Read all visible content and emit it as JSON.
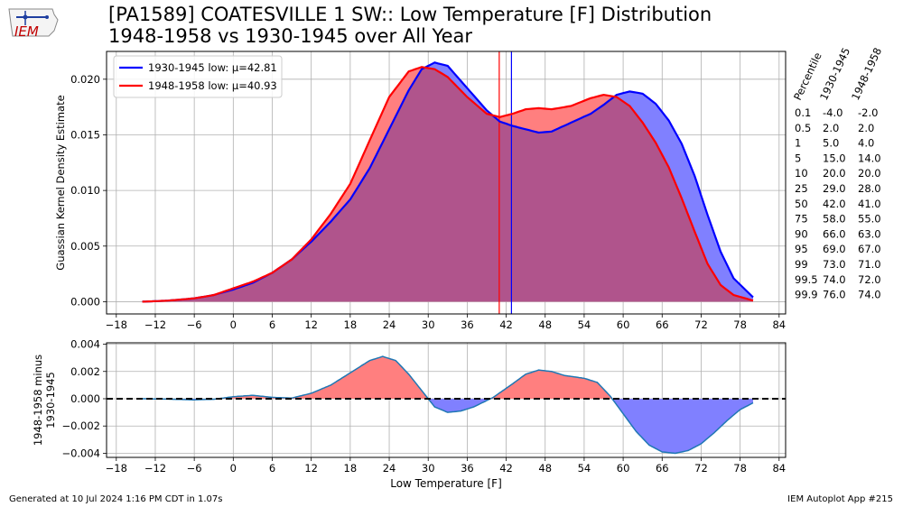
{
  "header": {
    "title_line1": "[PA1589] COATESVILLE 1 SW:: Low Temperature [F] Distribution",
    "title_line2": "1948-1958 vs 1930-1945 over All Year",
    "logo_text": "IEM"
  },
  "footer": {
    "generated": "Generated at 10 Jul 2024 1:16 PM CDT in 1.07s",
    "app": "IEM Autoplot App #215"
  },
  "colors": {
    "series_a": "#0000ff",
    "series_b": "#ff0000",
    "fill_a": "#8080ff",
    "fill_b": "#ff7f7f",
    "fill_overlap": "#b0548c",
    "diff_line": "#1f77b4",
    "grid": "#b0b0b0"
  },
  "chart_data": [
    {
      "type": "area",
      "ylabel": "Guassian Kernel Density Estimate",
      "xlim": [
        -19.5,
        85
      ],
      "ylim": [
        -0.0011,
        0.0225
      ],
      "xticks": [
        -18,
        -12,
        -6,
        0,
        6,
        12,
        18,
        24,
        30,
        36,
        42,
        48,
        54,
        60,
        66,
        72,
        78,
        84
      ],
      "yticks": [
        0.0,
        0.005,
        0.01,
        0.015,
        0.02
      ],
      "ytick_labels": [
        "0.000",
        "0.005",
        "0.010",
        "0.015",
        "0.020"
      ],
      "grid": true,
      "legend": "upper left",
      "x": [
        -14,
        -10,
        -6,
        -3,
        0,
        3,
        6,
        9,
        12,
        15,
        18,
        21,
        24,
        27,
        29,
        31,
        33,
        36,
        39,
        41,
        43,
        45,
        47,
        49,
        52,
        55,
        57,
        59,
        61,
        63,
        65,
        67,
        69,
        71,
        73,
        75,
        77,
        80
      ],
      "series": [
        {
          "name": "1930-1945 low: μ=42.81",
          "mean": 42.81,
          "values": [
            0.0,
            0.0001,
            0.0003,
            0.0006,
            0.0011,
            0.0017,
            0.0026,
            0.0038,
            0.0054,
            0.0072,
            0.0092,
            0.012,
            0.0155,
            0.019,
            0.0209,
            0.0215,
            0.0212,
            0.0192,
            0.0172,
            0.0162,
            0.0158,
            0.0155,
            0.0152,
            0.0153,
            0.0161,
            0.0169,
            0.0177,
            0.0186,
            0.0189,
            0.0187,
            0.0178,
            0.0163,
            0.0142,
            0.0113,
            0.0078,
            0.0045,
            0.0021,
            0.0004
          ]
        },
        {
          "name": "1948-1958 low: μ=40.93",
          "mean": 40.93,
          "values": [
            0.0,
            0.0001,
            0.0003,
            0.0006,
            0.0012,
            0.0018,
            0.0026,
            0.0038,
            0.0056,
            0.0079,
            0.0106,
            0.0145,
            0.0184,
            0.0207,
            0.0211,
            0.0209,
            0.0202,
            0.0184,
            0.0169,
            0.0166,
            0.0169,
            0.0173,
            0.0174,
            0.0173,
            0.0176,
            0.0183,
            0.0186,
            0.0184,
            0.0176,
            0.0161,
            0.0143,
            0.0121,
            0.0093,
            0.0063,
            0.0034,
            0.0015,
            0.0006,
            0.0001
          ]
        }
      ]
    },
    {
      "type": "area",
      "ylabel": "1948-1958 minus 1930-1945",
      "xlabel": "Low Temperature [F]",
      "xlim": [
        -19.5,
        85
      ],
      "ylim": [
        -0.0043,
        0.0041
      ],
      "xticks": [
        -18,
        -12,
        -6,
        0,
        6,
        12,
        18,
        24,
        30,
        36,
        42,
        48,
        54,
        60,
        66,
        72,
        78,
        84
      ],
      "yticks": [
        -0.004,
        -0.002,
        0.0,
        0.002,
        0.004
      ],
      "ytick_labels": [
        "−0.004",
        "−0.002",
        "0.000",
        "0.002",
        "0.004"
      ],
      "grid": true,
      "zero_line": "dashed",
      "x": [
        -14,
        -10,
        -6,
        -3,
        0,
        3,
        6,
        9,
        12,
        15,
        18,
        21,
        23,
        25,
        27,
        29,
        31,
        33,
        35,
        37,
        40,
        43,
        45,
        47,
        49,
        51,
        54,
        56,
        58,
        60,
        62,
        64,
        66,
        68,
        70,
        72,
        74,
        76,
        78,
        80
      ],
      "values": [
        0.0,
        -3e-05,
        -8e-05,
        -4e-05,
        0.00015,
        0.00025,
        0.0001,
        5e-05,
        0.0004,
        0.001,
        0.0019,
        0.0028,
        0.0031,
        0.0028,
        0.0018,
        0.0006,
        -0.0006,
        -0.001,
        -0.0009,
        -0.0006,
        0.0001,
        0.0011,
        0.0018,
        0.0021,
        0.002,
        0.0017,
        0.0015,
        0.0012,
        0.0002,
        -0.0011,
        -0.0024,
        -0.0034,
        -0.0039,
        -0.004,
        -0.0038,
        -0.0033,
        -0.0025,
        -0.0016,
        -0.0008,
        -0.0003
      ]
    }
  ],
  "percentile_table": {
    "headers": [
      "Percentile",
      "1930-1945",
      "1948-1958"
    ],
    "rows": [
      [
        "0.1",
        "-4.0",
        "-2.0"
      ],
      [
        "0.5",
        "2.0",
        "2.0"
      ],
      [
        "1",
        "5.0",
        "4.0"
      ],
      [
        "5",
        "15.0",
        "14.0"
      ],
      [
        "10",
        "20.0",
        "20.0"
      ],
      [
        "25",
        "29.0",
        "28.0"
      ],
      [
        "50",
        "42.0",
        "41.0"
      ],
      [
        "75",
        "58.0",
        "55.0"
      ],
      [
        "90",
        "66.0",
        "63.0"
      ],
      [
        "95",
        "69.0",
        "67.0"
      ],
      [
        "99",
        "73.0",
        "71.0"
      ],
      [
        "99.5",
        "74.0",
        "72.0"
      ],
      [
        "99.9",
        "76.0",
        "74.0"
      ]
    ]
  }
}
